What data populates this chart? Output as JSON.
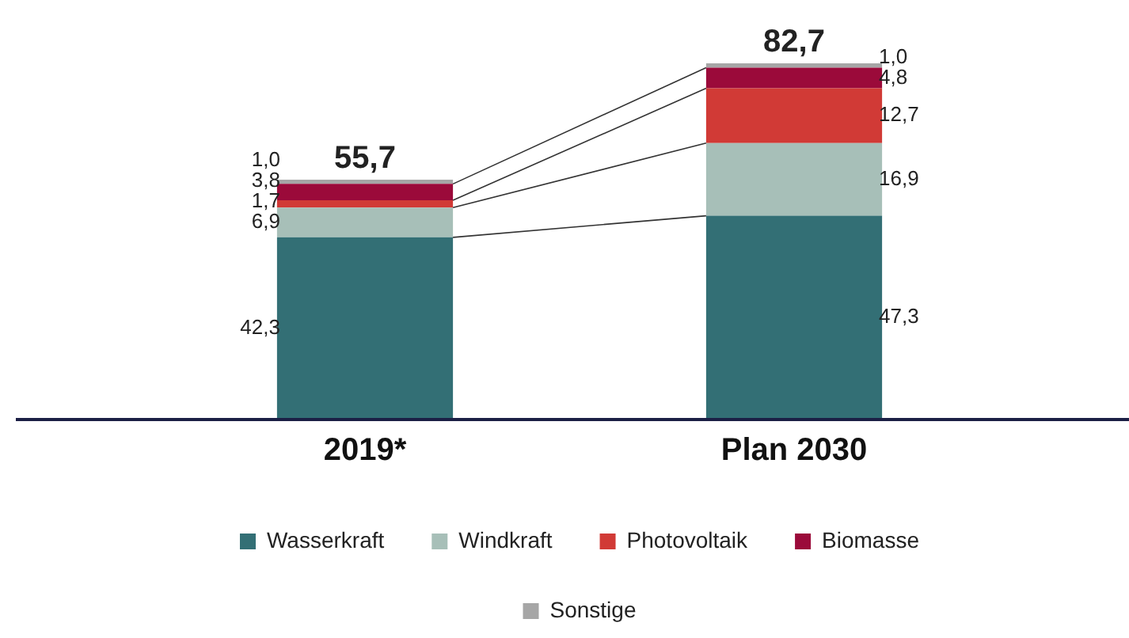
{
  "chart_data": {
    "type": "bar",
    "stacked": true,
    "categories": [
      "2019*",
      "Plan 2030"
    ],
    "series": [
      {
        "name": "Wasserkraft",
        "color": "#336f75",
        "values": [
          42.3,
          47.3
        ],
        "value_labels": [
          "42,3",
          "47,3"
        ]
      },
      {
        "name": "Windkraft",
        "color": "#a7bfb8",
        "values": [
          6.9,
          16.9
        ],
        "value_labels": [
          "6,9",
          "16,9"
        ]
      },
      {
        "name": "Photovoltaik",
        "color": "#d13a36",
        "values": [
          1.7,
          12.7
        ],
        "value_labels": [
          "1,7",
          "12,7"
        ]
      },
      {
        "name": "Biomasse",
        "color": "#9b0a3a",
        "values": [
          3.8,
          4.8
        ],
        "value_labels": [
          "3,8",
          "4,8"
        ]
      },
      {
        "name": "Sonstige",
        "color": "#a6a6a6",
        "values": [
          1.0,
          1.0
        ],
        "value_labels": [
          "1,0",
          "1,0"
        ]
      }
    ],
    "totals": [
      "55,7",
      "82,7"
    ],
    "legend": "bottom",
    "grid": false
  }
}
